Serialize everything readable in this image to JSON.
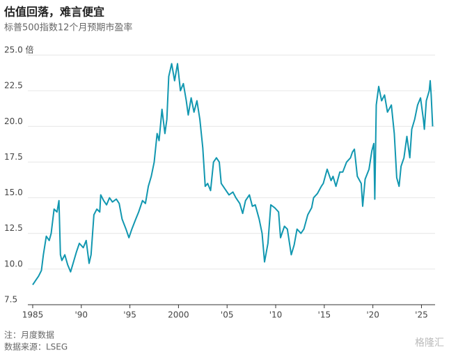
{
  "chart_data": {
    "type": "line",
    "title": "估值回落，难言便宜",
    "subtitle": "标普500指数12个月预期市盈率",
    "notes": [
      "注：月度数据",
      "数据来源：LSEG"
    ],
    "watermark": "格隆汇",
    "color": "#1197b0",
    "grid": true,
    "xlim": [
      1984.5,
      2026.4
    ],
    "ylim": [
      7.5,
      25
    ],
    "xticks": [
      1985,
      {
        "value": 1990,
        "label": "'90"
      },
      {
        "value": 1995,
        "label": "'95"
      },
      2000,
      {
        "value": 2005,
        "label": "'05"
      },
      {
        "value": 2010,
        "label": "'10"
      },
      {
        "value": 2015,
        "label": "'15"
      },
      {
        "value": 2020,
        "label": "'20"
      },
      {
        "value": 2025,
        "label": "'25"
      }
    ],
    "yticks": [
      {
        "value": 7.5,
        "label": "7.5"
      },
      {
        "value": 10,
        "label": "10.0"
      },
      {
        "value": 12.5,
        "label": "12.5"
      },
      {
        "value": 15,
        "label": "15.0"
      },
      {
        "value": 17.5,
        "label": "17.5"
      },
      {
        "value": 20,
        "label": "20.0"
      },
      {
        "value": 22.5,
        "label": "22.5"
      },
      {
        "value": 25,
        "label": "25.0 倍"
      }
    ],
    "x": [
      1985.0,
      1985.3,
      1985.6,
      1985.9,
      1986.1,
      1986.4,
      1986.7,
      1986.9,
      1987.2,
      1987.5,
      1987.7,
      1987.85,
      1988.0,
      1988.3,
      1988.6,
      1988.9,
      1989.2,
      1989.5,
      1989.8,
      1990.2,
      1990.5,
      1990.8,
      1991.0,
      1991.3,
      1991.6,
      1991.9,
      1992.0,
      1992.3,
      1992.6,
      1992.9,
      1993.2,
      1993.6,
      1993.9,
      1994.2,
      1994.6,
      1994.9,
      1995.2,
      1995.6,
      1995.9,
      1996.3,
      1996.6,
      1996.9,
      1997.2,
      1997.5,
      1997.8,
      1998.0,
      1998.3,
      1998.6,
      1998.8,
      1999.0,
      1999.3,
      1999.6,
      1999.9,
      2000.2,
      2000.5,
      2000.8,
      2001.0,
      2001.3,
      2001.6,
      2001.9,
      2002.2,
      2002.5,
      2002.75,
      2003.0,
      2003.3,
      2003.6,
      2003.9,
      2004.2,
      2004.4,
      2004.8,
      2005.2,
      2005.6,
      2005.9,
      2006.3,
      2006.6,
      2006.9,
      2007.3,
      2007.6,
      2007.9,
      2008.3,
      2008.6,
      2008.85,
      2009.2,
      2009.5,
      2009.9,
      2010.3,
      2010.5,
      2010.9,
      2011.2,
      2011.6,
      2011.9,
      2012.2,
      2012.6,
      2012.9,
      2013.3,
      2013.7,
      2013.9,
      2014.3,
      2014.7,
      2014.9,
      2015.3,
      2015.7,
      2015.9,
      2016.2,
      2016.6,
      2016.9,
      2017.3,
      2017.7,
      2017.9,
      2018.1,
      2018.4,
      2018.8,
      2018.95,
      2019.2,
      2019.6,
      2019.9,
      2020.1,
      2020.2,
      2020.35,
      2020.6,
      2020.9,
      2021.2,
      2021.5,
      2021.9,
      2022.2,
      2022.45,
      2022.7,
      2022.9,
      2023.2,
      2023.5,
      2023.8,
      2024.0,
      2024.3,
      2024.6,
      2024.9,
      2025.2,
      2025.3,
      2025.5,
      2025.8,
      2025.9,
      2026.0,
      2026.15
    ],
    "values": [
      8.9,
      9.2,
      9.5,
      9.9,
      11.0,
      12.3,
      12.0,
      12.5,
      14.2,
      14.0,
      14.8,
      11.0,
      10.6,
      11.0,
      10.3,
      9.8,
      10.5,
      11.2,
      11.8,
      11.5,
      12.0,
      10.4,
      11.0,
      13.8,
      14.2,
      14.0,
      15.2,
      14.8,
      14.5,
      15.0,
      14.7,
      14.9,
      14.6,
      13.5,
      12.8,
      12.2,
      12.8,
      13.5,
      14.0,
      14.8,
      14.6,
      15.8,
      16.5,
      17.5,
      19.5,
      19.0,
      21.2,
      19.5,
      20.5,
      23.5,
      24.4,
      23.2,
      24.4,
      22.5,
      23.0,
      21.8,
      20.8,
      22.0,
      21.0,
      21.8,
      20.5,
      18.5,
      15.8,
      16.0,
      15.5,
      17.5,
      17.8,
      17.5,
      16.0,
      15.6,
      15.2,
      15.4,
      15.0,
      14.6,
      13.9,
      14.8,
      15.2,
      14.4,
      14.5,
      13.5,
      12.5,
      10.5,
      11.8,
      14.5,
      14.3,
      14.0,
      12.2,
      13.0,
      12.8,
      11.0,
      11.7,
      12.8,
      12.5,
      12.8,
      13.8,
      14.3,
      15.0,
      15.3,
      15.8,
      16.0,
      17.0,
      16.2,
      16.5,
      15.8,
      16.8,
      16.8,
      17.5,
      17.8,
      18.2,
      18.4,
      16.5,
      16.0,
      14.4,
      16.3,
      17.0,
      18.3,
      18.8,
      14.9,
      21.5,
      22.8,
      21.8,
      22.2,
      21.0,
      21.5,
      19.5,
      16.4,
      15.8,
      17.2,
      17.8,
      19.3,
      17.8,
      19.8,
      20.5,
      21.5,
      22.0,
      20.5,
      19.8,
      21.8,
      22.5,
      23.2,
      22.2,
      20.0
    ]
  }
}
